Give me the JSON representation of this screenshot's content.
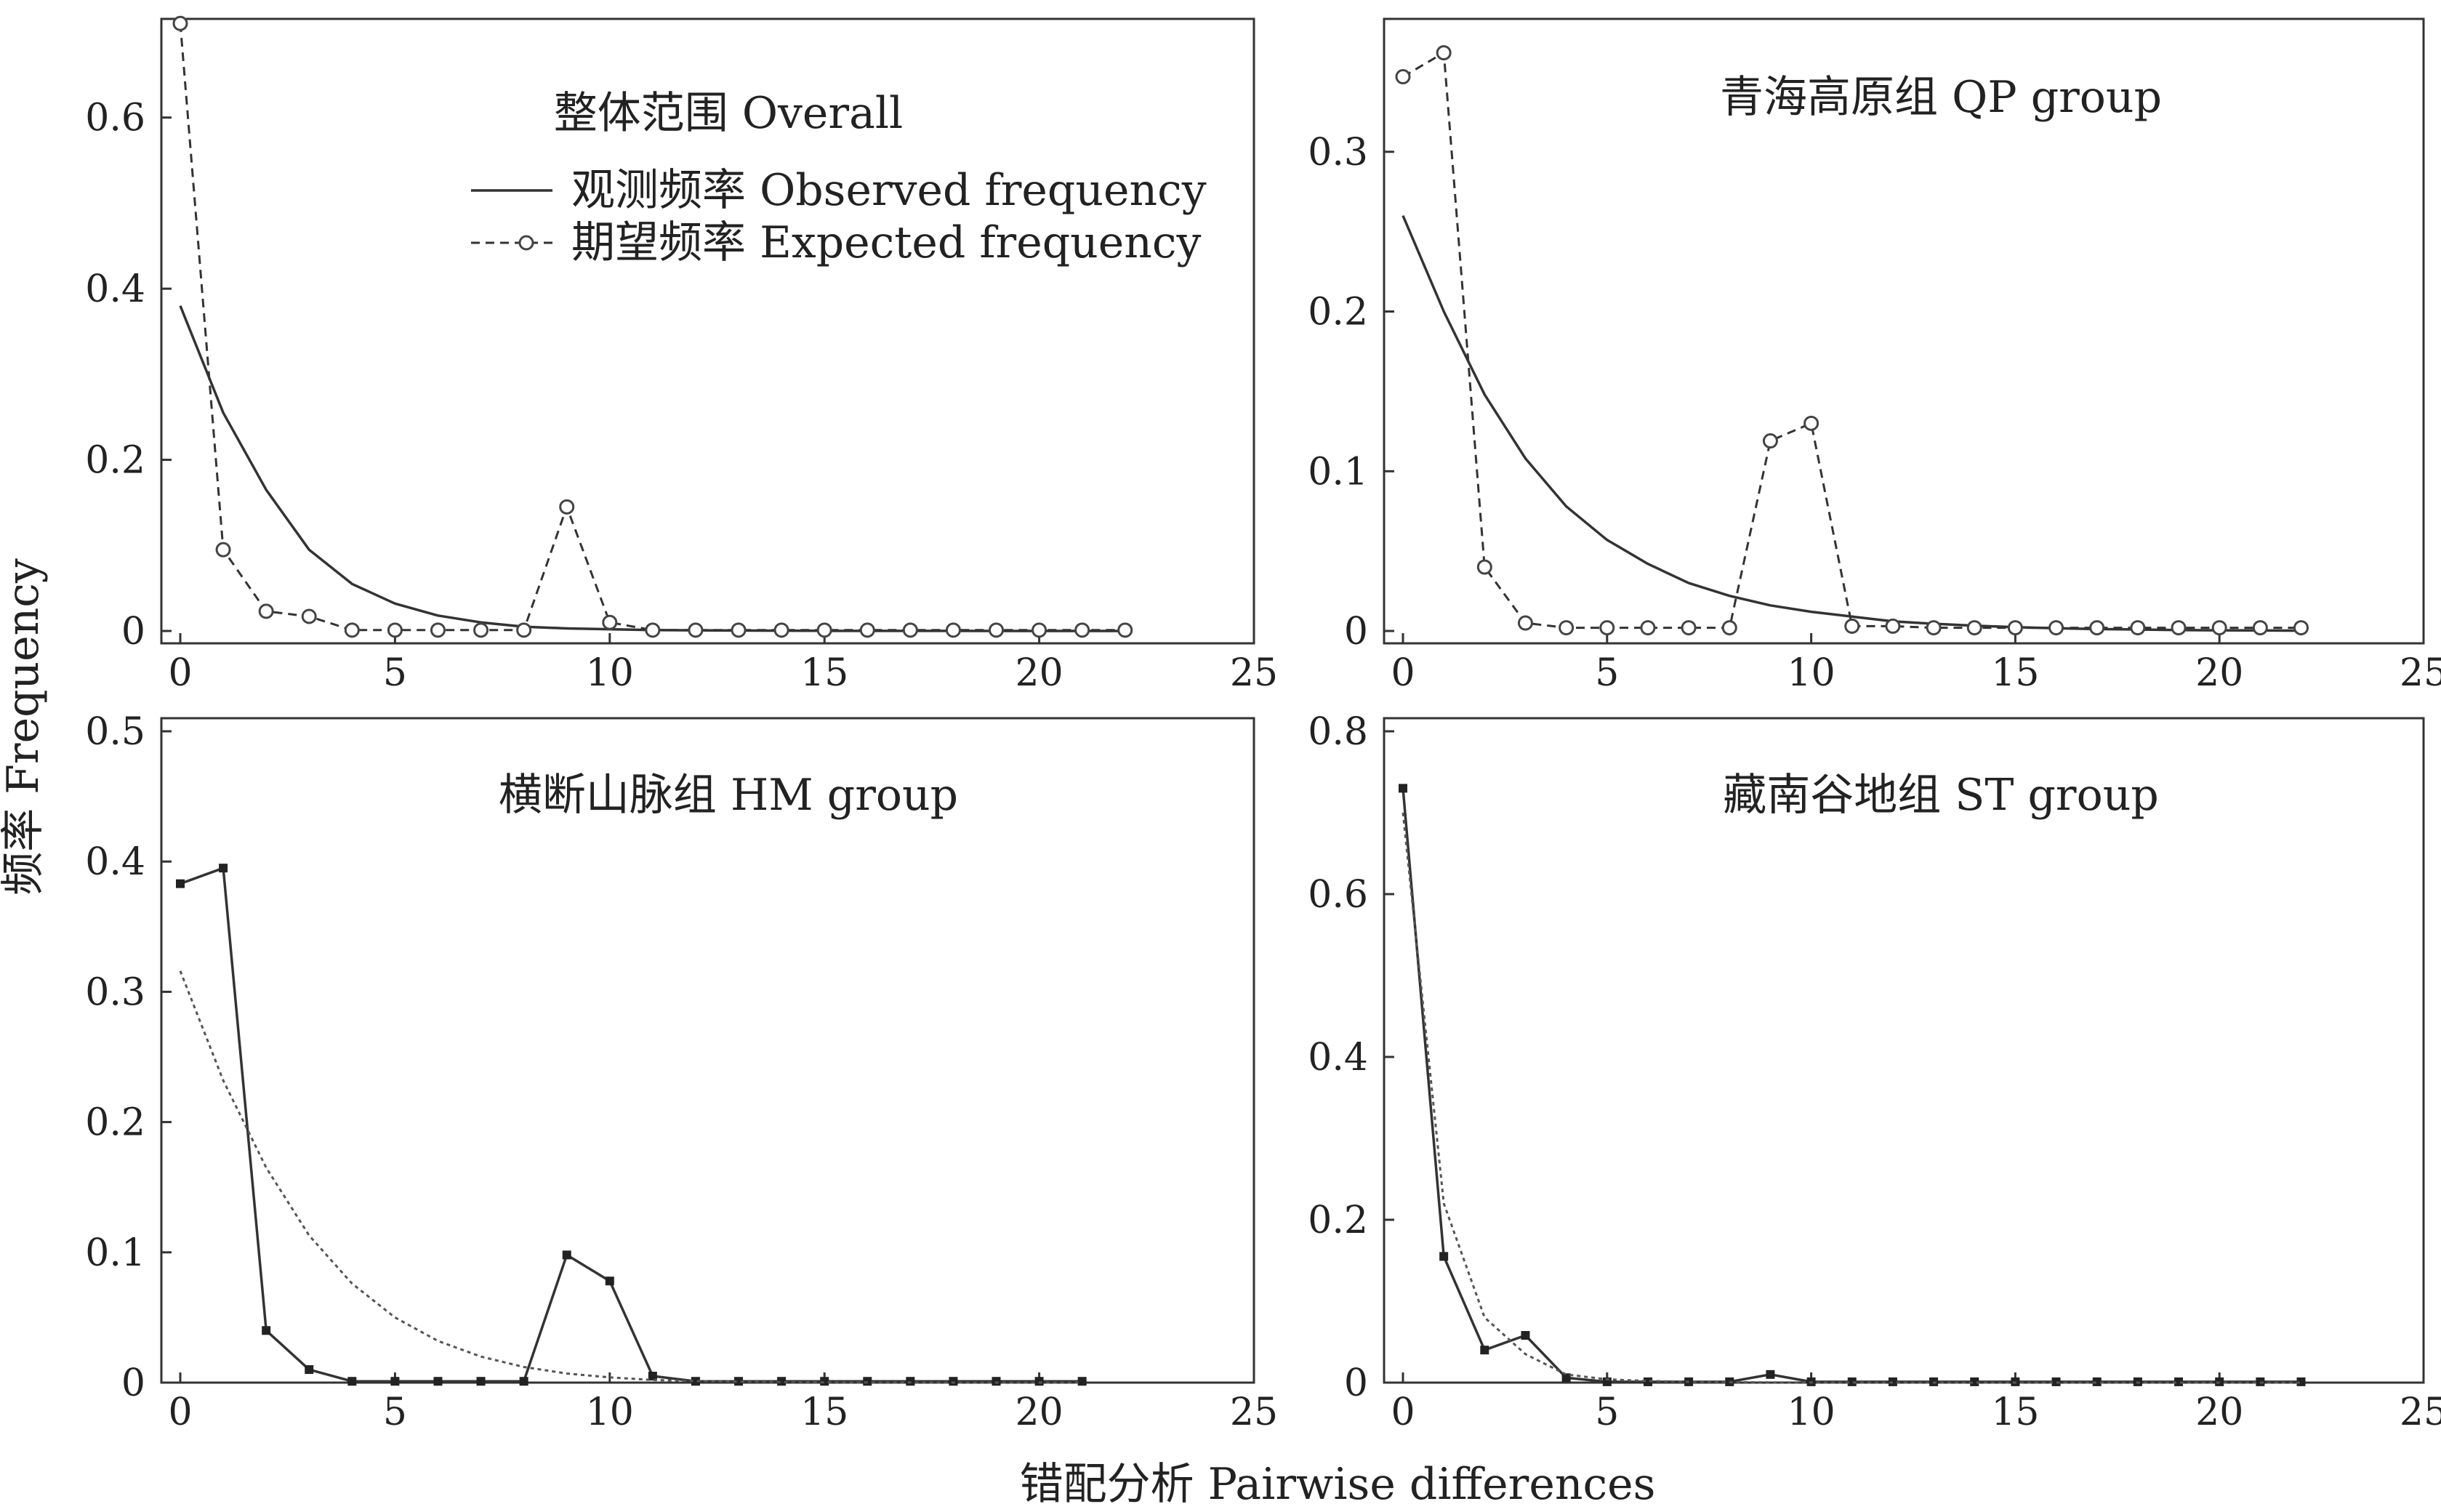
{
  "figure": {
    "ylabel": "频率 Frequency",
    "xlabel": "错配分析 Pairwise differences"
  },
  "chart_data": [
    {
      "type": "line",
      "title": "整体范围 Overall",
      "xlim": [
        0,
        25
      ],
      "ylim": [
        0,
        0.7
      ],
      "xticks": [
        "0",
        "5",
        "10",
        "15",
        "20",
        "25"
      ],
      "yticks": [
        "0",
        "0.2",
        "0.4",
        "0.6"
      ],
      "ytick_values": [
        0,
        0.2,
        0.4,
        0.6
      ],
      "legend": {
        "placement": "top-right",
        "entries": [
          "观测频率 Observed frequency",
          "期望频率 Expected frequency"
        ]
      },
      "series": [
        {
          "name": "观测频率 Observed frequency",
          "style": "solid",
          "x": [
            0,
            1,
            2,
            3,
            4,
            5,
            6,
            7,
            8,
            9,
            10,
            11,
            12,
            13,
            14,
            15,
            16,
            17,
            18,
            19,
            20,
            21,
            22
          ],
          "y": [
            0.38,
            0.255,
            0.165,
            0.095,
            0.055,
            0.032,
            0.018,
            0.01,
            0.005,
            0.003,
            0.002,
            0.001,
            0.0008,
            0.0005,
            0.0003,
            0.0002,
            0.0001,
            0.0001,
            0.0001,
            0,
            0,
            0,
            0
          ]
        },
        {
          "name": "期望频率 Expected frequency",
          "style": "dashed-circle",
          "x": [
            0,
            1,
            2,
            3,
            4,
            5,
            6,
            7,
            8,
            9,
            10,
            11,
            12,
            13,
            14,
            15,
            16,
            17,
            18,
            19,
            20,
            21,
            22
          ],
          "y": [
            0.71,
            0.095,
            0.023,
            0.017,
            0.001,
            0.001,
            0.001,
            0.001,
            0.001,
            0.145,
            0.01,
            0.001,
            0.001,
            0.001,
            0.001,
            0.001,
            0.001,
            0.001,
            0.001,
            0.001,
            0.001,
            0.001,
            0.001
          ]
        }
      ]
    },
    {
      "type": "line",
      "title": "青海高原组 QP group",
      "xlim": [
        0,
        25
      ],
      "ylim": [
        0,
        0.375
      ],
      "xticks": [
        "0",
        "5",
        "10",
        "15",
        "20",
        "25"
      ],
      "yticks": [
        "0",
        "0.1",
        "0.2",
        "0.3"
      ],
      "ytick_values": [
        0,
        0.1,
        0.2,
        0.3
      ],
      "series": [
        {
          "style": "solid",
          "x": [
            0,
            1,
            2,
            3,
            4,
            5,
            6,
            7,
            8,
            9,
            10,
            11,
            12,
            13,
            14,
            15,
            16,
            17,
            18,
            19,
            20,
            21,
            22
          ],
          "y": [
            0.26,
            0.2,
            0.148,
            0.108,
            0.078,
            0.057,
            0.042,
            0.03,
            0.022,
            0.016,
            0.012,
            0.009,
            0.006,
            0.0045,
            0.0033,
            0.0024,
            0.0017,
            0.0012,
            0.0009,
            0.0006,
            0.0004,
            0.0003,
            0.0002
          ]
        },
        {
          "style": "dashed-circle",
          "x": [
            0,
            1,
            2,
            3,
            4,
            5,
            6,
            7,
            8,
            9,
            10,
            11,
            12,
            13,
            14,
            15,
            16,
            17,
            18,
            19,
            20,
            21,
            22
          ],
          "y": [
            0.347,
            0.362,
            0.04,
            0.005,
            0.002,
            0.002,
            0.002,
            0.002,
            0.002,
            0.119,
            0.13,
            0.003,
            0.003,
            0.002,
            0.002,
            0.002,
            0.002,
            0.002,
            0.002,
            0.002,
            0.002,
            0.002,
            0.002
          ]
        }
      ]
    },
    {
      "type": "line",
      "title": "横断山脉组 HM group",
      "xlim": [
        0,
        25
      ],
      "ylim": [
        0,
        0.5
      ],
      "xticks": [
        "0",
        "5",
        "10",
        "15",
        "20",
        "25"
      ],
      "yticks": [
        "0",
        "0.1",
        "0.2",
        "0.3",
        "0.4",
        "0.5"
      ],
      "ytick_values": [
        0,
        0.1,
        0.2,
        0.3,
        0.4,
        0.5
      ],
      "series": [
        {
          "style": "solid-square",
          "x": [
            0,
            1,
            2,
            3,
            4,
            5,
            6,
            7,
            8,
            9,
            10,
            11,
            12,
            13,
            14,
            15,
            16,
            17,
            18,
            19,
            20,
            21
          ],
          "y": [
            0.383,
            0.395,
            0.04,
            0.01,
            0.001,
            0.001,
            0.001,
            0.001,
            0.001,
            0.098,
            0.078,
            0.005,
            0.001,
            0.001,
            0.001,
            0.001,
            0.001,
            0.001,
            0.001,
            0.001,
            0.001,
            0.001
          ]
        },
        {
          "style": "dotted",
          "x": [
            0,
            1,
            2,
            3,
            4,
            5,
            6,
            7,
            8,
            9,
            10,
            11,
            12,
            13,
            14,
            15,
            16,
            17,
            18,
            19,
            20,
            21
          ],
          "y": [
            0.316,
            0.232,
            0.165,
            0.113,
            0.076,
            0.05,
            0.032,
            0.02,
            0.012,
            0.007,
            0.004,
            0.002,
            0.0012,
            0.0007,
            0.0004,
            0.0002,
            0.0001,
            0.0001,
            0,
            0,
            0,
            0
          ]
        }
      ]
    },
    {
      "type": "line",
      "title": "藏南谷地组 ST group",
      "xlim": [
        0,
        25
      ],
      "ylim": [
        0,
        0.8
      ],
      "xticks": [
        "0",
        "5",
        "10",
        "15",
        "20",
        "25"
      ],
      "yticks": [
        "0",
        "0.2",
        "0.4",
        "0.6",
        "0.8"
      ],
      "ytick_values": [
        0,
        0.2,
        0.4,
        0.6,
        0.8
      ],
      "series": [
        {
          "style": "solid-square",
          "x": [
            0,
            1,
            2,
            3,
            4,
            5,
            6,
            7,
            8,
            9,
            10,
            11,
            12,
            13,
            14,
            15,
            16,
            17,
            18,
            19,
            20,
            21,
            22
          ],
          "y": [
            0.73,
            0.155,
            0.04,
            0.058,
            0.006,
            0.001,
            0.001,
            0.001,
            0.001,
            0.01,
            0.001,
            0.001,
            0.001,
            0.001,
            0.001,
            0.001,
            0.001,
            0.001,
            0.001,
            0.001,
            0.001,
            0.001,
            0.001
          ]
        },
        {
          "style": "dotted",
          "x": [
            0,
            1,
            2,
            3,
            4,
            5,
            6,
            7,
            8,
            9,
            10,
            11,
            12,
            13,
            14,
            15,
            16,
            17,
            18,
            19,
            20,
            21,
            22
          ],
          "y": [
            0.7,
            0.22,
            0.08,
            0.035,
            0.01,
            0.004,
            0.002,
            0.001,
            0.0005,
            0.0003,
            0.0002,
            0.0001,
            0.0001,
            0,
            0,
            0,
            0,
            0,
            0,
            0,
            0,
            0,
            0
          ]
        }
      ]
    }
  ]
}
